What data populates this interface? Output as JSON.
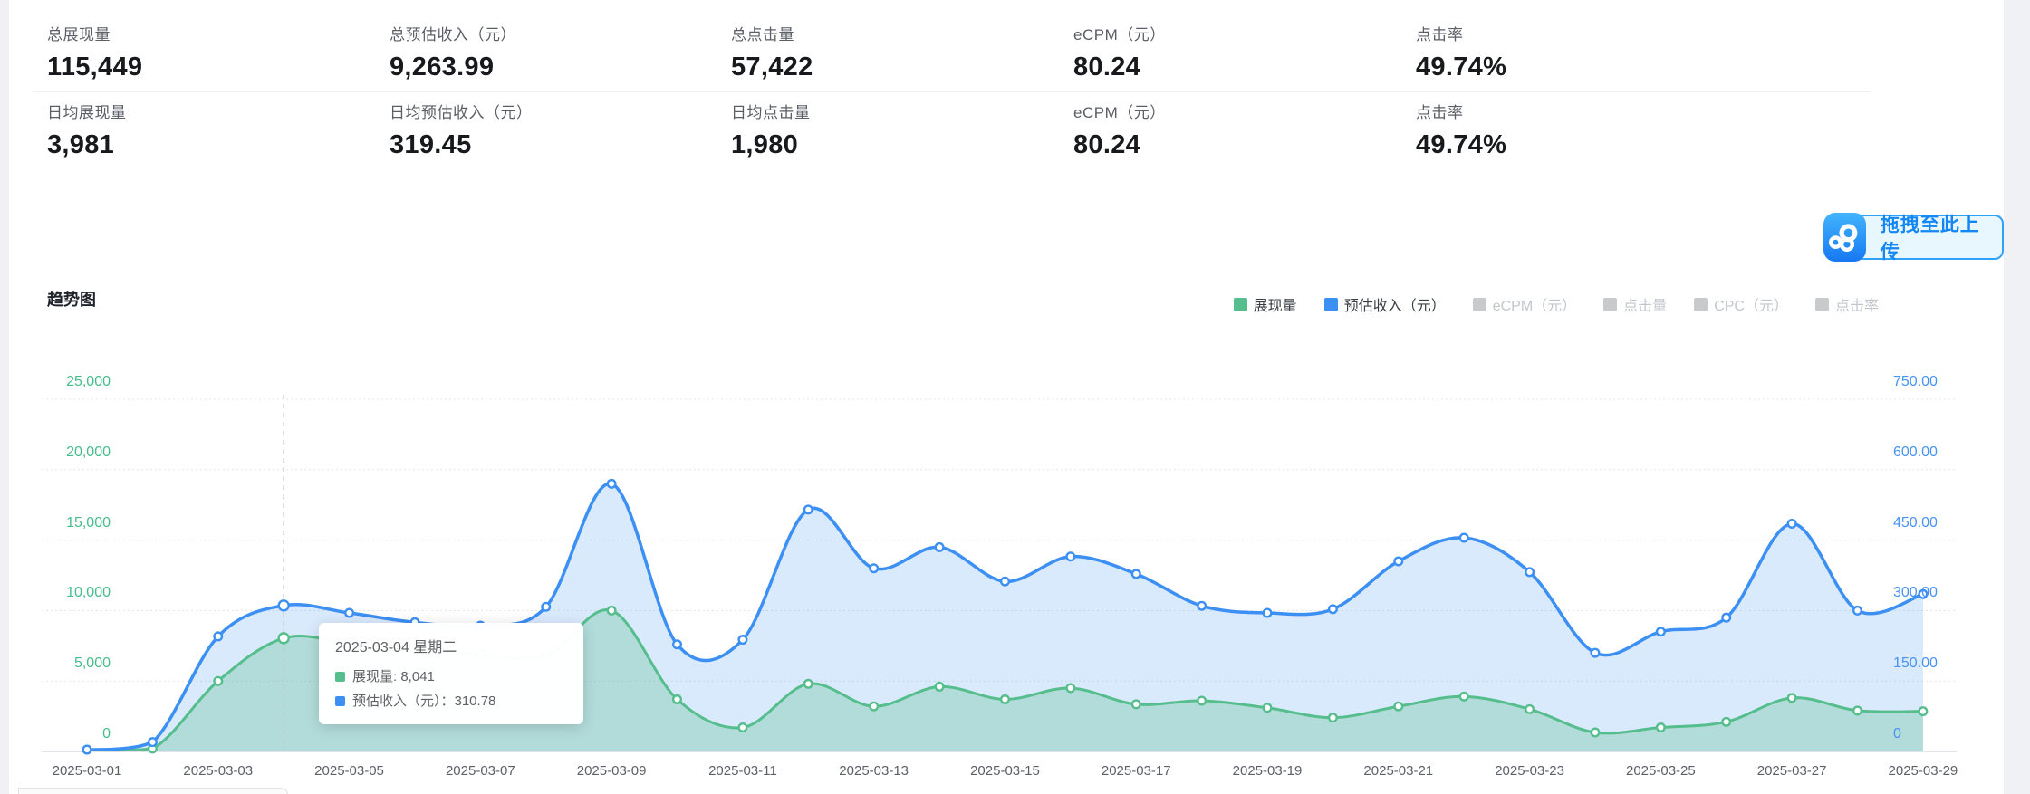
{
  "stats": {
    "rows": [
      [
        {
          "label": "总展现量",
          "value": "115,449"
        },
        {
          "label": "总预估收入（元）",
          "value": "9,263.99"
        },
        {
          "label": "总点击量",
          "value": "57,422"
        },
        {
          "label": "eCPM（元）",
          "value": "80.24"
        },
        {
          "label": "点击率",
          "value": "49.74%"
        }
      ],
      [
        {
          "label": "日均展现量",
          "value": "3,981"
        },
        {
          "label": "日均预估收入（元）",
          "value": "319.45"
        },
        {
          "label": "日均点击量",
          "value": "1,980"
        },
        {
          "label": "eCPM（元）",
          "value": "80.24"
        },
        {
          "label": "点击率",
          "value": "49.74%"
        }
      ]
    ]
  },
  "upload": {
    "label": "拖拽至此上传"
  },
  "chart_data": {
    "type": "area",
    "title": "趋势图",
    "x": [
      "2025-03-01",
      "2025-03-02",
      "2025-03-03",
      "2025-03-04",
      "2025-03-05",
      "2025-03-06",
      "2025-03-07",
      "2025-03-08",
      "2025-03-09",
      "2025-03-10",
      "2025-03-11",
      "2025-03-12",
      "2025-03-13",
      "2025-03-14",
      "2025-03-15",
      "2025-03-16",
      "2025-03-17",
      "2025-03-18",
      "2025-03-19",
      "2025-03-20",
      "2025-03-21",
      "2025-03-22",
      "2025-03-23",
      "2025-03-24",
      "2025-03-25",
      "2025-03-26",
      "2025-03-27",
      "2025-03-28",
      "2025-03-29"
    ],
    "x_tick_labels": [
      "2025-03-01",
      "2025-03-03",
      "2025-03-05",
      "2025-03-07",
      "2025-03-09",
      "2025-03-11",
      "2025-03-13",
      "2025-03-15",
      "2025-03-17",
      "2025-03-19",
      "2025-03-21",
      "2025-03-23",
      "2025-03-25",
      "2025-03-27",
      "2025-03-29"
    ],
    "series": [
      {
        "name": "展现量",
        "axis": "left",
        "color": "#56BE8C",
        "fill": "rgba(86,190,140,0.30)",
        "values": [
          100,
          200,
          5000,
          8041,
          7700,
          7300,
          6900,
          6800,
          10000,
          3700,
          1700,
          4800,
          3200,
          4600,
          3700,
          4500,
          3350,
          3600,
          3100,
          2400,
          3200,
          3900,
          3000,
          1350,
          1700,
          2100,
          3800,
          2900,
          2850
        ]
      },
      {
        "name": "预估收入（元）",
        "axis": "right",
        "color": "#3C8FF3",
        "fill": "rgba(60,143,243,0.19)",
        "values": [
          3,
          20,
          245,
          310.78,
          295,
          275,
          268,
          308,
          570,
          228,
          238,
          515,
          390,
          435,
          362,
          415,
          378,
          310,
          295,
          303,
          405,
          455,
          382,
          210,
          255,
          285,
          485,
          300,
          335
        ]
      }
    ],
    "y_left": {
      "max": 25000,
      "ticks": [
        "25,000",
        "20,000",
        "15,000",
        "10,000",
        "5,000",
        "0"
      ],
      "color": "#45BD8B"
    },
    "y_right": {
      "max": 750,
      "ticks": [
        "750.00",
        "600.00",
        "450.00",
        "300.00",
        "150.00",
        "0"
      ],
      "color": "#4793F4"
    },
    "legend": [
      {
        "label": "展现量",
        "color": "#56BE8C",
        "active": true
      },
      {
        "label": "预估收入（元）",
        "color": "#3C8FF3",
        "active": true
      },
      {
        "label": "eCPM（元）",
        "color": "#C8CACC",
        "active": false
      },
      {
        "label": "点击量",
        "color": "#C8CACC",
        "active": false
      },
      {
        "label": "CPC（元）",
        "color": "#C8CACC",
        "active": false
      },
      {
        "label": "点击率",
        "color": "#C8CACC",
        "active": false
      }
    ],
    "tooltip": {
      "day_index": 3,
      "title": "2025-03-04 星期二",
      "rows": [
        {
          "text": "展现量: 8,041",
          "color": "#56BE8C"
        },
        {
          "text": "预估收入（元）：310.78",
          "color": "#3C8FF3"
        }
      ]
    }
  }
}
